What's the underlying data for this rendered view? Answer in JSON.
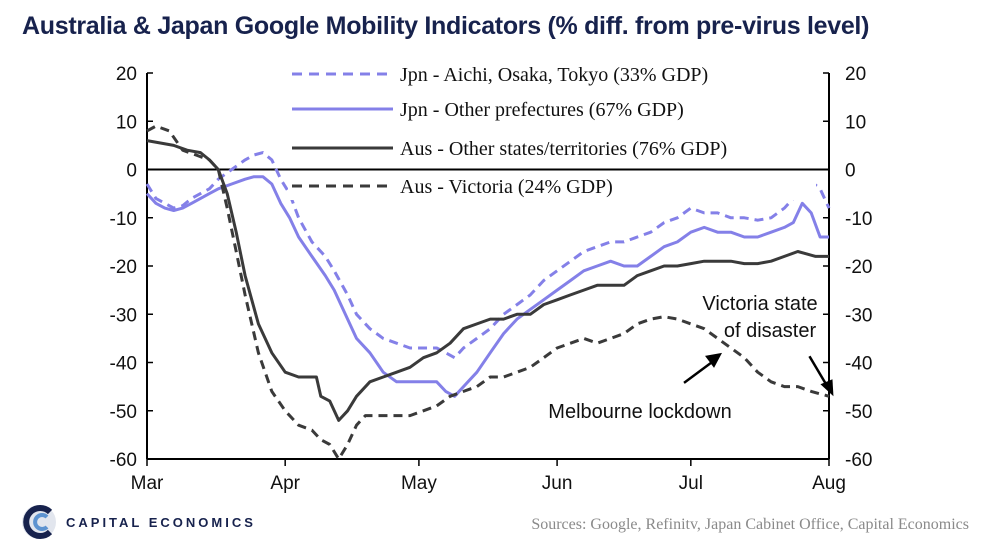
{
  "header": {
    "title": "Australia & Japan Google Mobility Indicators (% diff. from pre-virus level)"
  },
  "footer": {
    "logo_text": "CAPITAL ECONOMICS",
    "sources": "Sources: Google, Refinitv, Japan Cabinet Office, Capital Economics"
  },
  "colors": {
    "title": "#17224d",
    "jpn": "#8480e8",
    "aus": "#3a3a3a"
  },
  "chart_data": {
    "type": "line",
    "title": "Australia & Japan Google Mobility Indicators (% diff. from pre-virus level)",
    "x_tick_labels": [
      "Mar",
      "Apr",
      "May",
      "Jun",
      "Jul",
      "Aug"
    ],
    "x_ticks": [
      "2020-03-01",
      "2020-04-01",
      "2020-05-01",
      "2020-06-01",
      "2020-07-01",
      "2020-08-01"
    ],
    "xlim": [
      "2020-03-01",
      "2020-08-01"
    ],
    "ylim": [
      -60,
      20
    ],
    "yticks": [
      20,
      10,
      0,
      -10,
      -20,
      -30,
      -40,
      -50,
      -60
    ],
    "y_axes": "left-and-right",
    "grid": false,
    "legend_position": "top",
    "series": [
      {
        "name": "Jpn - Aichi, Osaka, Tokyo (33% GDP)",
        "style": "dashed",
        "color": "#8480e8",
        "points": [
          [
            "2020-03-01",
            -3
          ],
          [
            "2020-03-03",
            -6
          ],
          [
            "2020-03-05",
            -7
          ],
          [
            "2020-03-07",
            -8
          ],
          [
            "2020-03-09",
            -7.5
          ],
          [
            "2020-03-11",
            -6
          ],
          [
            "2020-03-13",
            -5
          ],
          [
            "2020-03-15",
            -4
          ],
          [
            "2020-03-17",
            -2
          ],
          [
            "2020-03-20",
            0
          ],
          [
            "2020-03-23",
            2
          ],
          [
            "2020-03-25",
            3
          ],
          [
            "2020-03-27",
            3.5
          ],
          [
            "2020-03-29",
            2
          ],
          [
            "2020-03-31",
            -2
          ],
          [
            "2020-04-02",
            -5
          ],
          [
            "2020-04-04",
            -10
          ],
          [
            "2020-04-07",
            -15
          ],
          [
            "2020-04-10",
            -18
          ],
          [
            "2020-04-12",
            -21
          ],
          [
            "2020-04-15",
            -26
          ],
          [
            "2020-04-17",
            -30
          ],
          [
            "2020-04-20",
            -33
          ],
          [
            "2020-04-23",
            -35
          ],
          [
            "2020-04-26",
            -36
          ],
          [
            "2020-04-29",
            -37
          ],
          [
            "2020-05-02",
            -37
          ],
          [
            "2020-05-05",
            -37
          ],
          [
            "2020-05-07",
            -38
          ],
          [
            "2020-05-09",
            -39
          ],
          [
            "2020-05-11",
            -37
          ],
          [
            "2020-05-14",
            -35
          ],
          [
            "2020-05-17",
            -33
          ],
          [
            "2020-05-20",
            -30
          ],
          [
            "2020-05-23",
            -28
          ],
          [
            "2020-05-26",
            -26
          ],
          [
            "2020-05-29",
            -23
          ],
          [
            "2020-06-01",
            -21
          ],
          [
            "2020-06-04",
            -19
          ],
          [
            "2020-06-07",
            -17
          ],
          [
            "2020-06-10",
            -16
          ],
          [
            "2020-06-13",
            -15
          ],
          [
            "2020-06-16",
            -15
          ],
          [
            "2020-06-19",
            -14
          ],
          [
            "2020-06-22",
            -13
          ],
          [
            "2020-06-25",
            -11
          ],
          [
            "2020-06-28",
            -10
          ],
          [
            "2020-07-01",
            -8
          ],
          [
            "2020-07-04",
            -9
          ],
          [
            "2020-07-07",
            -9
          ],
          [
            "2020-07-10",
            -10
          ],
          [
            "2020-07-13",
            -10
          ],
          [
            "2020-07-16",
            -10.5
          ],
          [
            "2020-07-19",
            -10
          ],
          [
            "2020-07-22",
            -8
          ],
          [
            "2020-07-24",
            -6
          ],
          [
            "2020-07-26",
            -2
          ],
          [
            "2020-07-28",
            -2.5
          ],
          [
            "2020-07-30",
            -4
          ],
          [
            "2020-08-01",
            -8
          ]
        ]
      },
      {
        "name": "Jpn - Other prefectures (67% GDP)",
        "style": "solid",
        "color": "#8480e8",
        "points": [
          [
            "2020-03-01",
            -5
          ],
          [
            "2020-03-03",
            -7
          ],
          [
            "2020-03-05",
            -8
          ],
          [
            "2020-03-07",
            -8.5
          ],
          [
            "2020-03-09",
            -8
          ],
          [
            "2020-03-11",
            -7
          ],
          [
            "2020-03-13",
            -6
          ],
          [
            "2020-03-15",
            -5
          ],
          [
            "2020-03-17",
            -4
          ],
          [
            "2020-03-20",
            -3
          ],
          [
            "2020-03-23",
            -2
          ],
          [
            "2020-03-25",
            -1.5
          ],
          [
            "2020-03-27",
            -1.5
          ],
          [
            "2020-03-29",
            -3
          ],
          [
            "2020-03-31",
            -7
          ],
          [
            "2020-04-02",
            -10
          ],
          [
            "2020-04-04",
            -14
          ],
          [
            "2020-04-07",
            -18
          ],
          [
            "2020-04-10",
            -22
          ],
          [
            "2020-04-12",
            -25
          ],
          [
            "2020-04-15",
            -31
          ],
          [
            "2020-04-17",
            -35
          ],
          [
            "2020-04-20",
            -38
          ],
          [
            "2020-04-23",
            -42
          ],
          [
            "2020-04-26",
            -44
          ],
          [
            "2020-04-29",
            -44
          ],
          [
            "2020-05-02",
            -44
          ],
          [
            "2020-05-05",
            -44
          ],
          [
            "2020-05-07",
            -46
          ],
          [
            "2020-05-09",
            -47
          ],
          [
            "2020-05-11",
            -45
          ],
          [
            "2020-05-14",
            -42
          ],
          [
            "2020-05-17",
            -38
          ],
          [
            "2020-05-20",
            -34
          ],
          [
            "2020-05-23",
            -31
          ],
          [
            "2020-05-26",
            -29
          ],
          [
            "2020-05-29",
            -27
          ],
          [
            "2020-06-01",
            -25
          ],
          [
            "2020-06-04",
            -23
          ],
          [
            "2020-06-07",
            -21
          ],
          [
            "2020-06-10",
            -20
          ],
          [
            "2020-06-13",
            -19
          ],
          [
            "2020-06-16",
            -20
          ],
          [
            "2020-06-19",
            -20
          ],
          [
            "2020-06-22",
            -18
          ],
          [
            "2020-06-25",
            -16
          ],
          [
            "2020-06-28",
            -15
          ],
          [
            "2020-07-01",
            -13
          ],
          [
            "2020-07-04",
            -12
          ],
          [
            "2020-07-07",
            -13
          ],
          [
            "2020-07-10",
            -13
          ],
          [
            "2020-07-13",
            -14
          ],
          [
            "2020-07-16",
            -14
          ],
          [
            "2020-07-19",
            -13
          ],
          [
            "2020-07-22",
            -12
          ],
          [
            "2020-07-24",
            -11
          ],
          [
            "2020-07-26",
            -7
          ],
          [
            "2020-07-28",
            -9
          ],
          [
            "2020-07-30",
            -14
          ],
          [
            "2020-08-01",
            -14
          ]
        ]
      },
      {
        "name": "Aus - Other states/territories (76% GDP)",
        "style": "solid",
        "color": "#3a3a3a",
        "points": [
          [
            "2020-03-01",
            6
          ],
          [
            "2020-03-04",
            5.5
          ],
          [
            "2020-03-07",
            5
          ],
          [
            "2020-03-10",
            4
          ],
          [
            "2020-03-13",
            3.5
          ],
          [
            "2020-03-15",
            2
          ],
          [
            "2020-03-17",
            0
          ],
          [
            "2020-03-19",
            -5
          ],
          [
            "2020-03-21",
            -13
          ],
          [
            "2020-03-23",
            -22
          ],
          [
            "2020-03-26",
            -32
          ],
          [
            "2020-03-29",
            -38
          ],
          [
            "2020-04-01",
            -42
          ],
          [
            "2020-04-04",
            -43
          ],
          [
            "2020-04-08",
            -43
          ],
          [
            "2020-04-09",
            -47
          ],
          [
            "2020-04-11",
            -48
          ],
          [
            "2020-04-13",
            -52
          ],
          [
            "2020-04-15",
            -50
          ],
          [
            "2020-04-17",
            -47
          ],
          [
            "2020-04-20",
            -44
          ],
          [
            "2020-04-23",
            -43
          ],
          [
            "2020-04-26",
            -42
          ],
          [
            "2020-04-29",
            -41
          ],
          [
            "2020-05-02",
            -39
          ],
          [
            "2020-05-05",
            -38
          ],
          [
            "2020-05-08",
            -36
          ],
          [
            "2020-05-11",
            -33
          ],
          [
            "2020-05-14",
            -32
          ],
          [
            "2020-05-17",
            -31
          ],
          [
            "2020-05-20",
            -31
          ],
          [
            "2020-05-23",
            -30
          ],
          [
            "2020-05-26",
            -30
          ],
          [
            "2020-05-29",
            -28
          ],
          [
            "2020-06-01",
            -27
          ],
          [
            "2020-06-04",
            -26
          ],
          [
            "2020-06-07",
            -25
          ],
          [
            "2020-06-10",
            -24
          ],
          [
            "2020-06-13",
            -24
          ],
          [
            "2020-06-16",
            -24
          ],
          [
            "2020-06-19",
            -22
          ],
          [
            "2020-06-22",
            -21
          ],
          [
            "2020-06-25",
            -20
          ],
          [
            "2020-06-28",
            -20
          ],
          [
            "2020-07-01",
            -19.5
          ],
          [
            "2020-07-04",
            -19
          ],
          [
            "2020-07-07",
            -19
          ],
          [
            "2020-07-10",
            -19
          ],
          [
            "2020-07-13",
            -19.5
          ],
          [
            "2020-07-16",
            -19.5
          ],
          [
            "2020-07-19",
            -19
          ],
          [
            "2020-07-22",
            -18
          ],
          [
            "2020-07-25",
            -17
          ],
          [
            "2020-07-27",
            -17.5
          ],
          [
            "2020-07-29",
            -18
          ],
          [
            "2020-08-01",
            -18
          ]
        ]
      },
      {
        "name": "Aus - Victoria (24% GDP)",
        "style": "dashed",
        "color": "#3a3a3a",
        "points": [
          [
            "2020-03-01",
            8
          ],
          [
            "2020-03-03",
            9
          ],
          [
            "2020-03-06",
            8
          ],
          [
            "2020-03-09",
            4
          ],
          [
            "2020-03-12",
            3
          ],
          [
            "2020-03-15",
            2
          ],
          [
            "2020-03-17",
            0
          ],
          [
            "2020-03-19",
            -8
          ],
          [
            "2020-03-21",
            -17
          ],
          [
            "2020-03-23",
            -26
          ],
          [
            "2020-03-26",
            -38
          ],
          [
            "2020-03-29",
            -46
          ],
          [
            "2020-04-01",
            -50
          ],
          [
            "2020-04-04",
            -53
          ],
          [
            "2020-04-07",
            -54
          ],
          [
            "2020-04-09",
            -56
          ],
          [
            "2020-04-11",
            -57
          ],
          [
            "2020-04-13",
            -60
          ],
          [
            "2020-04-15",
            -57
          ],
          [
            "2020-04-17",
            -53
          ],
          [
            "2020-04-19",
            -51
          ],
          [
            "2020-04-22",
            -51
          ],
          [
            "2020-04-26",
            -51
          ],
          [
            "2020-04-29",
            -51
          ],
          [
            "2020-05-02",
            -50
          ],
          [
            "2020-05-05",
            -49
          ],
          [
            "2020-05-08",
            -47
          ],
          [
            "2020-05-11",
            -46
          ],
          [
            "2020-05-14",
            -45
          ],
          [
            "2020-05-17",
            -43
          ],
          [
            "2020-05-20",
            -43
          ],
          [
            "2020-05-23",
            -42
          ],
          [
            "2020-05-26",
            -41
          ],
          [
            "2020-05-29",
            -39
          ],
          [
            "2020-06-01",
            -37
          ],
          [
            "2020-06-04",
            -36
          ],
          [
            "2020-06-07",
            -35
          ],
          [
            "2020-06-10",
            -36
          ],
          [
            "2020-06-13",
            -35
          ],
          [
            "2020-06-16",
            -34
          ],
          [
            "2020-06-19",
            -32
          ],
          [
            "2020-06-22",
            -31
          ],
          [
            "2020-06-25",
            -30.5
          ],
          [
            "2020-06-28",
            -31
          ],
          [
            "2020-07-01",
            -32
          ],
          [
            "2020-07-04",
            -33
          ],
          [
            "2020-07-07",
            -35
          ],
          [
            "2020-07-10",
            -37
          ],
          [
            "2020-07-13",
            -39
          ],
          [
            "2020-07-16",
            -42
          ],
          [
            "2020-07-19",
            -44
          ],
          [
            "2020-07-22",
            -45
          ],
          [
            "2020-07-25",
            -45
          ],
          [
            "2020-07-28",
            -46
          ],
          [
            "2020-08-01",
            -47
          ]
        ]
      }
    ],
    "annotations": [
      {
        "id": "lockdown",
        "text": "Melbourne lockdown",
        "date": "2020-07-08",
        "value": -38
      },
      {
        "id": "disaster",
        "lines": [
          "Victoria state",
          "of disaster"
        ],
        "date": "2020-08-02",
        "value": -47
      }
    ]
  }
}
